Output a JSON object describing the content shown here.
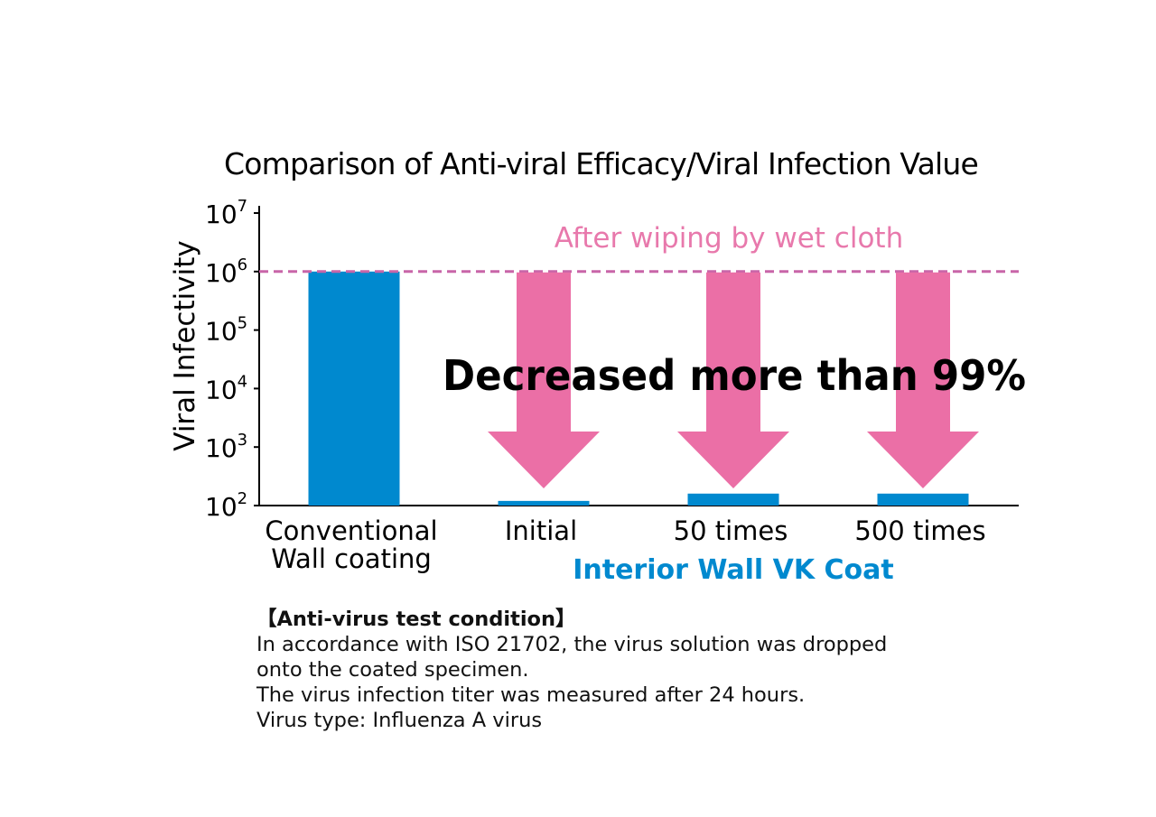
{
  "chart_data": {
    "type": "bar",
    "title": "Comparison of Anti-viral Efficacy/Viral Infection Value",
    "ylabel": "Viral Infectivity",
    "yscale": "log",
    "ylim": [
      100,
      10000000
    ],
    "yticks": [
      {
        "value": 100,
        "base": "10",
        "exp": "2"
      },
      {
        "value": 1000,
        "base": "10",
        "exp": "3"
      },
      {
        "value": 10000,
        "base": "10",
        "exp": "4"
      },
      {
        "value": 100000,
        "base": "10",
        "exp": "5"
      },
      {
        "value": 1000000,
        "base": "10",
        "exp": "6"
      },
      {
        "value": 10000000,
        "base": "10",
        "exp": "7"
      }
    ],
    "categories": [
      {
        "lines": [
          "Conventional",
          "Wall coating"
        ]
      },
      {
        "lines": [
          "Initial"
        ]
      },
      {
        "lines": [
          "50 times"
        ]
      },
      {
        "lines": [
          "500 times"
        ]
      }
    ],
    "values": [
      1000000,
      120,
      160,
      160
    ],
    "group_label": "Interior Wall VK Coat",
    "reference_line": {
      "value": 1000000,
      "label": "After wiping by wet cloth"
    },
    "annotation": "Decreased more than 99%",
    "grid": false,
    "colors": {
      "bar": "#0089cf",
      "arrow": "#eb6fa6",
      "reference": "#c865a8",
      "reference_label": "#e879ac",
      "group_label": "#0089cf"
    }
  },
  "notes": {
    "heading": "【Anti-virus test condition】",
    "lines": [
      "In accordance with ISO 21702, the virus solution was dropped",
      "onto the coated specimen.",
      "The virus infection titer was measured after 24 hours.",
      "Virus type: Influenza A virus"
    ]
  }
}
